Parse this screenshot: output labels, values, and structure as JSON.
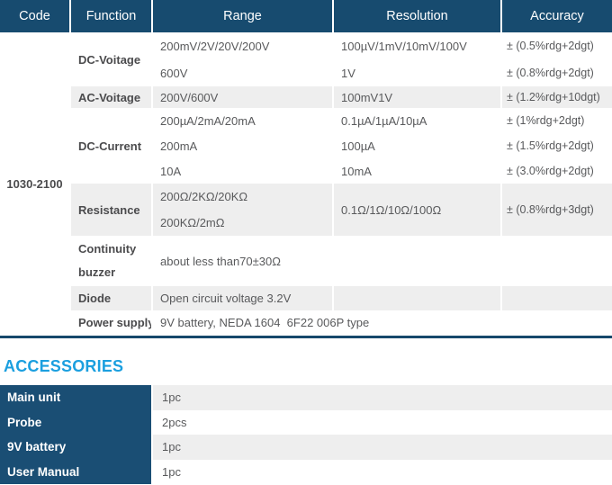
{
  "colors": {
    "header_navy": "#174b6f",
    "sidebar_navy": "#1a4e74",
    "row_gray": "#eeeeee",
    "accent_blue": "#1b9fdf",
    "body_text": "#595a5c"
  },
  "spec": {
    "headers": [
      "Code",
      "Function",
      "Range",
      "Resolution",
      "Accuracy"
    ],
    "code": "1030-2100",
    "groups": [
      {
        "label": "DC-Voitage",
        "rows": [
          {
            "range": "200mV/2V/20V/200V",
            "resolution": "100µV/1mV/10mV/100V",
            "accuracy": "± (0.5%rdg+2dgt)"
          },
          {
            "range": "600V",
            "resolution": "1V",
            "accuracy": "± (0.8%rdg+2dgt)"
          }
        ]
      },
      {
        "label": "AC-Voitage",
        "rows": [
          {
            "range": "200V/600V",
            "resolution": "100mV1V",
            "accuracy": "± (1.2%rdg+10dgt)"
          }
        ]
      },
      {
        "label": "DC-Current",
        "rows": [
          {
            "range": "200µA/2mA/20mA",
            "resolution": "0.1µA/1µA/10µA",
            "accuracy": "± (1%rdg+2dgt)"
          },
          {
            "range": "200mA",
            "resolution": "100µA",
            "accuracy": "± (1.5%rdg+2dgt)"
          },
          {
            "range": "10A",
            "resolution": "10mA",
            "accuracy": "± (3.0%rdg+2dgt)"
          }
        ]
      },
      {
        "label": "Resistance",
        "range_lines": [
          "200Ω/2KΩ/20KΩ",
          "200KΩ/2mΩ"
        ],
        "resolution": "0.1Ω/1Ω/10Ω/100Ω",
        "accuracy": "± (0.8%rdg+3dgt)"
      },
      {
        "label_line1": "Continuity",
        "label_line2": "buzzer",
        "value": "about less than70±30Ω"
      },
      {
        "label": "Diode",
        "value": "Open circuit voltage 3.2V"
      },
      {
        "label": "Power supply",
        "value": "9V battery, NEDA 1604  6F22 006P type"
      }
    ]
  },
  "accessories": {
    "title": "ACCESSORIES",
    "items": [
      {
        "label": "Main unit",
        "qty": "1pc"
      },
      {
        "label": "Probe",
        "qty": "2pcs"
      },
      {
        "label": "9V battery",
        "qty": "1pc"
      },
      {
        "label": "User Manual",
        "qty": "1pc"
      }
    ]
  }
}
